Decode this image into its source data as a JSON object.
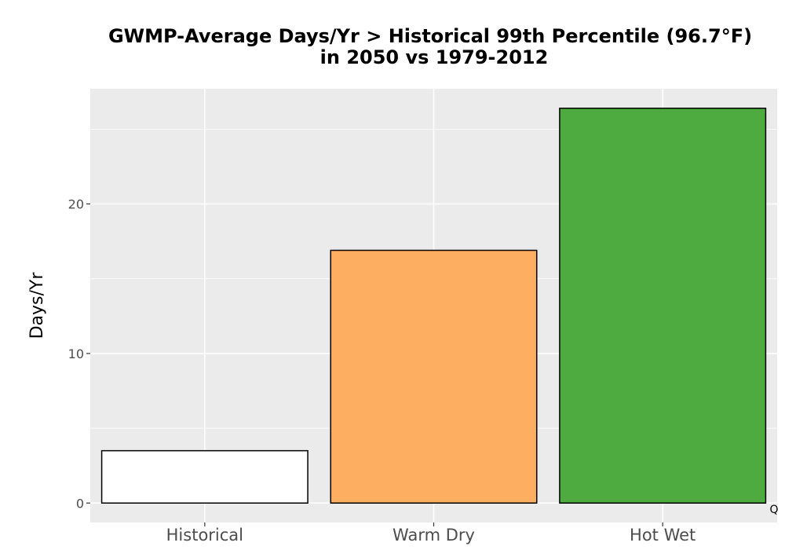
{
  "chart_data": {
    "type": "bar",
    "title_line1": "GWMP-Average Days/Yr > Historical 99th Percentile (96.7°F)",
    "title_line2": "in 2050 vs 1979-2012",
    "xlabel": "",
    "ylabel": "Days/Yr",
    "categories": [
      "Historical",
      "Warm Dry",
      "Hot Wet"
    ],
    "values": [
      3.5,
      16.9,
      26.4
    ],
    "colors": [
      "#ffffff",
      "#fdae61",
      "#4dab3f"
    ],
    "bar_outline": "#000000",
    "panel_background": "#ebebeb",
    "gridline_color": "#ffffff",
    "ylim": [
      -1.3,
      27.7
    ],
    "yticks": [
      0,
      10,
      20
    ],
    "grid": true,
    "legend": "none",
    "corner_text": "Q"
  }
}
